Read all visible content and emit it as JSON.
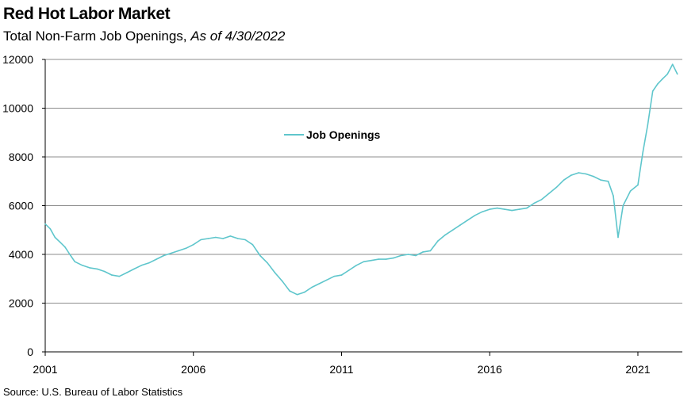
{
  "header": {
    "title": "Red Hot Labor Market",
    "subtitle_main": "Total Non-Farm Job Openings, ",
    "subtitle_date": "As of 4/30/2022"
  },
  "footer": {
    "source": "Source: U.S. Bureau of Labor Statistics"
  },
  "colors": {
    "series": "#5fc6cc",
    "grid": "#8c8c8c",
    "axis": "#000000"
  },
  "chart_data": {
    "type": "line",
    "title": "Red Hot Labor Market",
    "subtitle": "Total Non-Farm Job Openings, As of 4/30/2022",
    "xlabel": "",
    "ylabel": "",
    "ylim": [
      0,
      12000
    ],
    "xlim": [
      2001,
      2022.5
    ],
    "yticks": [
      0,
      2000,
      4000,
      6000,
      8000,
      10000,
      12000
    ],
    "xticks": [
      2001,
      2006,
      2011,
      2016,
      2021
    ],
    "grid": true,
    "legend_position": "top-center",
    "series": [
      {
        "name": "Job Openings",
        "color": "#5fc6cc",
        "x": [
          2001.0,
          2001.17,
          2001.33,
          2001.5,
          2001.67,
          2001.83,
          2002.0,
          2002.25,
          2002.5,
          2002.75,
          2003.0,
          2003.25,
          2003.5,
          2003.75,
          2004.0,
          2004.25,
          2004.5,
          2004.75,
          2005.0,
          2005.25,
          2005.5,
          2005.75,
          2006.0,
          2006.25,
          2006.5,
          2006.75,
          2007.0,
          2007.25,
          2007.5,
          2007.75,
          2008.0,
          2008.25,
          2008.5,
          2008.75,
          2009.0,
          2009.25,
          2009.5,
          2009.75,
          2010.0,
          2010.25,
          2010.5,
          2010.75,
          2011.0,
          2011.25,
          2011.5,
          2011.75,
          2012.0,
          2012.25,
          2012.5,
          2012.75,
          2013.0,
          2013.25,
          2013.5,
          2013.75,
          2014.0,
          2014.25,
          2014.5,
          2014.75,
          2015.0,
          2015.25,
          2015.5,
          2015.75,
          2016.0,
          2016.25,
          2016.5,
          2016.75,
          2017.0,
          2017.25,
          2017.5,
          2017.75,
          2018.0,
          2018.25,
          2018.5,
          2018.75,
          2019.0,
          2019.25,
          2019.5,
          2019.75,
          2020.0,
          2020.17,
          2020.33,
          2020.5,
          2020.75,
          2021.0,
          2021.17,
          2021.33,
          2021.5,
          2021.67,
          2021.83,
          2022.0,
          2022.17,
          2022.33
        ],
        "values": [
          5250,
          5050,
          4700,
          4500,
          4300,
          4000,
          3700,
          3550,
          3450,
          3400,
          3300,
          3150,
          3100,
          3250,
          3400,
          3550,
          3650,
          3800,
          3950,
          4050,
          4150,
          4250,
          4400,
          4600,
          4650,
          4700,
          4650,
          4750,
          4650,
          4600,
          4400,
          3950,
          3650,
          3250,
          2900,
          2500,
          2350,
          2450,
          2650,
          2800,
          2950,
          3100,
          3150,
          3350,
          3550,
          3700,
          3750,
          3800,
          3800,
          3850,
          3950,
          4000,
          3950,
          4100,
          4150,
          4550,
          4800,
          5000,
          5200,
          5400,
          5600,
          5750,
          5850,
          5900,
          5850,
          5800,
          5850,
          5900,
          6100,
          6250,
          6500,
          6750,
          7050,
          7250,
          7350,
          7300,
          7200,
          7050,
          7000,
          6400,
          4700,
          6000,
          6600,
          6850,
          8200,
          9300,
          10700,
          11000,
          11200,
          11400,
          11800,
          11400
        ]
      }
    ]
  }
}
